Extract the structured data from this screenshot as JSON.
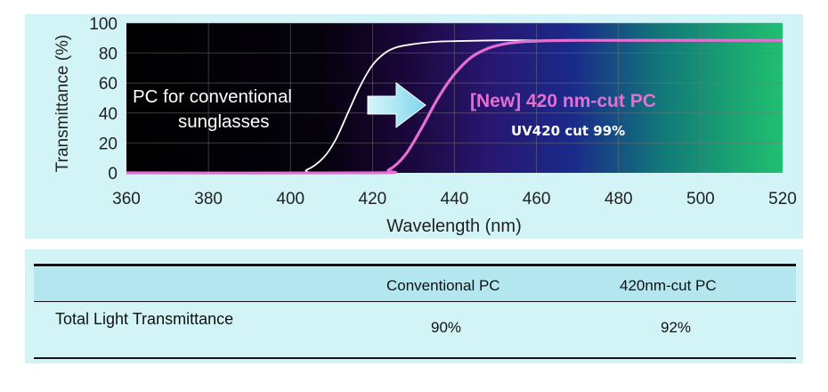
{
  "chart_data": {
    "type": "line",
    "title": "",
    "xlabel": "Wavelength (nm)",
    "ylabel": "Transmittance (%)",
    "xlim": [
      360,
      520
    ],
    "ylim": [
      0,
      100
    ],
    "xticks": [
      360,
      380,
      400,
      420,
      440,
      460,
      480,
      500,
      520
    ],
    "yticks": [
      0,
      20,
      40,
      60,
      80,
      100
    ],
    "grid": true,
    "series": [
      {
        "name": "PC for conventional sunglasses",
        "color": "#ffffff",
        "x": [
          360,
          400,
          404,
          408,
          411,
          414,
          417,
          420,
          423,
          426,
          430,
          435,
          440,
          450,
          460,
          520
        ],
        "y": [
          0,
          0,
          2,
          10,
          22,
          40,
          58,
          72,
          80,
          84,
          86,
          87.5,
          88,
          88.5,
          88.5,
          88.5
        ]
      },
      {
        "name": "[New] 420 nm-cut PC",
        "color": "#e46fd2",
        "x": [
          360,
          420,
          424,
          428,
          432,
          436,
          440,
          444,
          448,
          452,
          456,
          460,
          470,
          520
        ],
        "y": [
          0,
          0,
          2,
          12,
          30,
          50,
          66,
          77,
          83,
          86,
          87.5,
          88,
          88.5,
          88.5
        ]
      }
    ],
    "annotations": {
      "conventional_label_line1": "PC for conventional",
      "conventional_label_line2": "sunglasses",
      "new_label": "[New] 420 nm-cut PC",
      "new_sublabel": "UV420 cut 99%"
    }
  },
  "table": {
    "columns": [
      "",
      "Conventional PC",
      "420nm-cut PC"
    ],
    "rows": [
      {
        "label": "Total Light Transmittance",
        "values": [
          "90%",
          "92%"
        ]
      }
    ]
  },
  "colors": {
    "panel_bg": "#d3f4f6",
    "new_curve": "#e46fd2",
    "new_label": "#e46fd2",
    "arrow": "#a8e6f3"
  }
}
